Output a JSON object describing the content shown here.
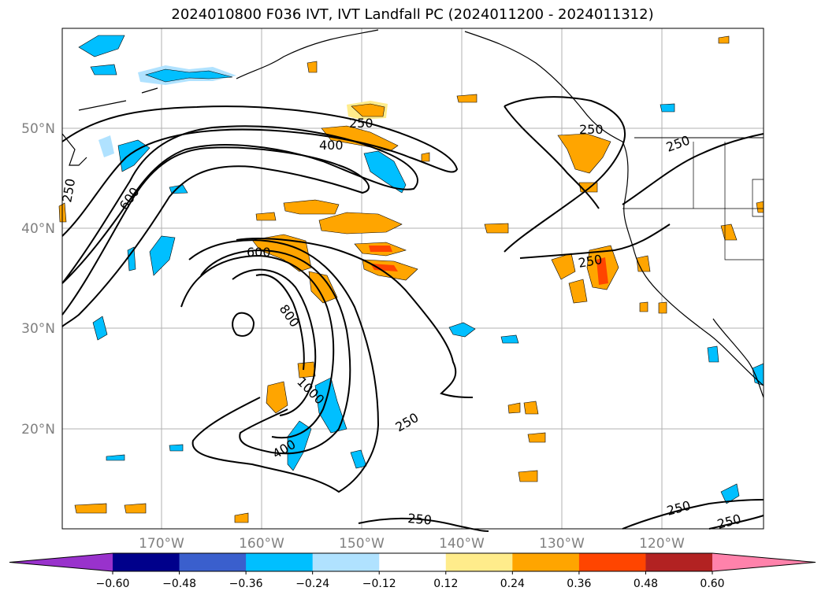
{
  "title": "2024010800 F036 IVT, IVT Landfall PC (2024011200 - 2024011312)",
  "lat_labels": [
    "50°N",
    "40°N",
    "30°N",
    "20°N"
  ],
  "lon_labels": [
    "170°W",
    "160°W",
    "150°W",
    "140°W",
    "130°W",
    "120°W"
  ],
  "contour_labels": {
    "c250": "250",
    "c400": "400",
    "c600": "600",
    "c800": "800",
    "c1000": "1000"
  },
  "colorbar": {
    "colors": [
      "#9932cc",
      "#00008b",
      "#3a5fcd",
      "#00bfff",
      "#b0e2ff",
      "#ffffff",
      "#ffec8b",
      "#ffa500",
      "#ff4500",
      "#b22222",
      "#ff82ab"
    ],
    "ticks": [
      "−0.60",
      "−0.48",
      "−0.36",
      "−0.24",
      "−0.12",
      "0.12",
      "0.24",
      "0.36",
      "0.48",
      "0.60"
    ]
  },
  "colors": {
    "coast": "#000000",
    "grid": "#b0b0b0",
    "contour": "#000000",
    "orange": "#ffa500",
    "yellow": "#ffec8b",
    "red": "#ff4500",
    "blue": "#00bfff",
    "lightblue": "#b0e2ff"
  }
}
